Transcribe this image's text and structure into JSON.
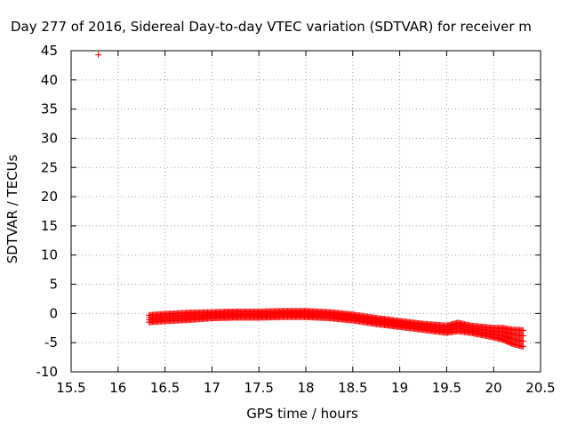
{
  "chart_data": {
    "type": "scatter",
    "title": "Day 277 of 2016, Sidereal Day-to-day VTEC variation (SDTVAR) for receiver m",
    "xlabel": "GPS time / hours",
    "ylabel": "SDTVAR / TECUs",
    "xlim": [
      15.5,
      20.5
    ],
    "ylim": [
      -10,
      45
    ],
    "xticks": [
      "15.5",
      "16",
      "16.5",
      "17",
      "17.5",
      "18",
      "18.5",
      "19",
      "19.5",
      "20",
      "20.5"
    ],
    "yticks": [
      "-10",
      "-5",
      "0",
      "5",
      "10",
      "15",
      "20",
      "25",
      "30",
      "35",
      "40",
      "45"
    ],
    "grid": true,
    "marker": "+",
    "series": [
      {
        "name": "SDTVAR",
        "color": "#ff0000",
        "outlier": {
          "x": 15.79,
          "y": 44.3
        },
        "trend_x": [
          16.33,
          16.5,
          16.75,
          17.0,
          17.25,
          17.5,
          17.75,
          18.0,
          18.25,
          18.5,
          18.75,
          19.0,
          19.25,
          19.5,
          19.62,
          19.75,
          20.0,
          20.1,
          20.2,
          20.32
        ],
        "trend_y": [
          -0.9,
          -0.7,
          -0.5,
          -0.3,
          -0.2,
          -0.2,
          -0.1,
          -0.1,
          -0.3,
          -0.7,
          -1.3,
          -1.8,
          -2.3,
          -2.7,
          -2.3,
          -2.7,
          -3.3,
          -3.5,
          -4.0,
          -4.3
        ],
        "spread": [
          0.6,
          0.6,
          0.6,
          0.5,
          0.5,
          0.5,
          0.5,
          0.5,
          0.5,
          0.5,
          0.5,
          0.5,
          0.5,
          0.6,
          0.7,
          0.6,
          0.8,
          1.0,
          1.2,
          1.4
        ]
      }
    ]
  }
}
